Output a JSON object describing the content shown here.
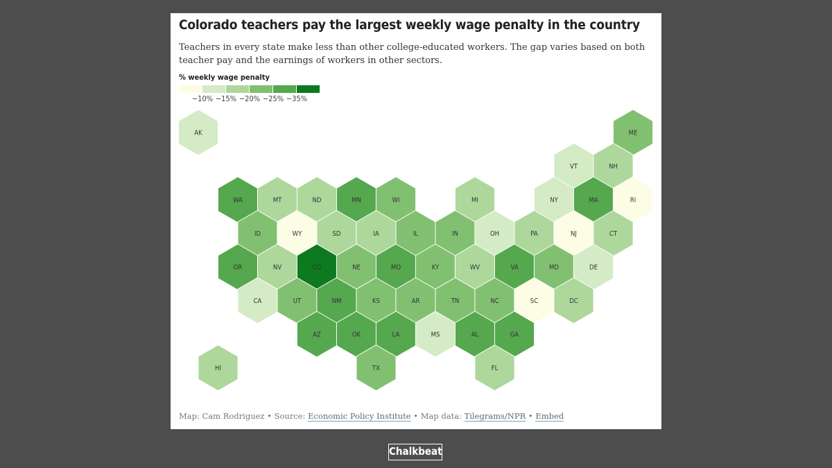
{
  "title": "Colorado teachers pay the largest weekly wage penalty in the country",
  "subtitle": "Teachers in every state make less than other college-educated workers. The gap varies based on both teacher pay and the earnings of workers in other sectors.",
  "legend": {
    "title": "% weekly wage penalty",
    "labels": [
      "−10%",
      "−15%",
      "−20%",
      "−25%",
      "−35%"
    ],
    "colors": [
      "#fdfde6",
      "#d4ebc5",
      "#aed79c",
      "#82c071",
      "#55a84d",
      "#0d7a20"
    ]
  },
  "footer": {
    "byline": "Map: Cam Rodriguez • Source: ",
    "source": "Economic Policy Institute",
    "sep1": " • Map data: ",
    "mapdata": "Tilegrams/NPR",
    "sep2": " • ",
    "embed": "Embed"
  },
  "brand": "Chalkbeat",
  "map": {
    "hexes": [
      {
        "state": "AK",
        "row": 0,
        "col": 0,
        "bin": 1
      },
      {
        "state": "ME",
        "row": 0,
        "col": 11,
        "bin": 3
      },
      {
        "state": "VT",
        "row": 1,
        "col": 9,
        "bin": 1
      },
      {
        "state": "NH",
        "row": 1,
        "col": 10,
        "bin": 2
      },
      {
        "state": "WA",
        "row": 2,
        "col": 1,
        "bin": 4
      },
      {
        "state": "MT",
        "row": 2,
        "col": 2,
        "bin": 2
      },
      {
        "state": "ND",
        "row": 2,
        "col": 3,
        "bin": 2
      },
      {
        "state": "MN",
        "row": 2,
        "col": 4,
        "bin": 4
      },
      {
        "state": "WI",
        "row": 2,
        "col": 5,
        "bin": 3
      },
      {
        "state": "MI",
        "row": 2,
        "col": 7,
        "bin": 2
      },
      {
        "state": "NY",
        "row": 2,
        "col": 9,
        "bin": 1
      },
      {
        "state": "MA",
        "row": 2,
        "col": 10,
        "bin": 4
      },
      {
        "state": "RI",
        "row": 2,
        "col": 11,
        "bin": 0
      },
      {
        "state": "ID",
        "row": 3,
        "col": 1,
        "bin": 3
      },
      {
        "state": "WY",
        "row": 3,
        "col": 2,
        "bin": 0
      },
      {
        "state": "SD",
        "row": 3,
        "col": 3,
        "bin": 2
      },
      {
        "state": "IA",
        "row": 3,
        "col": 4,
        "bin": 2
      },
      {
        "state": "IL",
        "row": 3,
        "col": 5,
        "bin": 3
      },
      {
        "state": "IN",
        "row": 3,
        "col": 6,
        "bin": 3
      },
      {
        "state": "OH",
        "row": 3,
        "col": 7,
        "bin": 1
      },
      {
        "state": "PA",
        "row": 3,
        "col": 8,
        "bin": 2
      },
      {
        "state": "NJ",
        "row": 3,
        "col": 9,
        "bin": 0
      },
      {
        "state": "CT",
        "row": 3,
        "col": 10,
        "bin": 2
      },
      {
        "state": "OR",
        "row": 4,
        "col": 1,
        "bin": 4
      },
      {
        "state": "NV",
        "row": 4,
        "col": 2,
        "bin": 2
      },
      {
        "state": "CO",
        "row": 4,
        "col": 3,
        "bin": 5
      },
      {
        "state": "NE",
        "row": 4,
        "col": 4,
        "bin": 3
      },
      {
        "state": "MO",
        "row": 4,
        "col": 5,
        "bin": 4
      },
      {
        "state": "KY",
        "row": 4,
        "col": 6,
        "bin": 3
      },
      {
        "state": "WV",
        "row": 4,
        "col": 7,
        "bin": 2
      },
      {
        "state": "VA",
        "row": 4,
        "col": 8,
        "bin": 4
      },
      {
        "state": "MD",
        "row": 4,
        "col": 9,
        "bin": 3
      },
      {
        "state": "DE",
        "row": 4,
        "col": 10,
        "bin": 1
      },
      {
        "state": "CA",
        "row": 5,
        "col": 1,
        "bin": 1
      },
      {
        "state": "UT",
        "row": 5,
        "col": 2,
        "bin": 3
      },
      {
        "state": "NM",
        "row": 5,
        "col": 3,
        "bin": 4
      },
      {
        "state": "KS",
        "row": 5,
        "col": 4,
        "bin": 3
      },
      {
        "state": "AR",
        "row": 5,
        "col": 5,
        "bin": 3
      },
      {
        "state": "TN",
        "row": 5,
        "col": 6,
        "bin": 3
      },
      {
        "state": "NC",
        "row": 5,
        "col": 7,
        "bin": 3
      },
      {
        "state": "SC",
        "row": 5,
        "col": 8,
        "bin": 0
      },
      {
        "state": "DC",
        "row": 5,
        "col": 9,
        "bin": 2
      },
      {
        "state": "AZ",
        "row": 6,
        "col": 3,
        "bin": 4
      },
      {
        "state": "OK",
        "row": 6,
        "col": 4,
        "bin": 4
      },
      {
        "state": "LA",
        "row": 6,
        "col": 5,
        "bin": 4
      },
      {
        "state": "MS",
        "row": 6,
        "col": 6,
        "bin": 1
      },
      {
        "state": "AL",
        "row": 6,
        "col": 7,
        "bin": 4
      },
      {
        "state": "GA",
        "row": 6,
        "col": 8,
        "bin": 4
      },
      {
        "state": "HI",
        "row": 7,
        "col": 0,
        "bin": 2
      },
      {
        "state": "TX",
        "row": 7,
        "col": 4,
        "bin": 3
      },
      {
        "state": "FL",
        "row": 7,
        "col": 7,
        "bin": 2
      }
    ]
  }
}
